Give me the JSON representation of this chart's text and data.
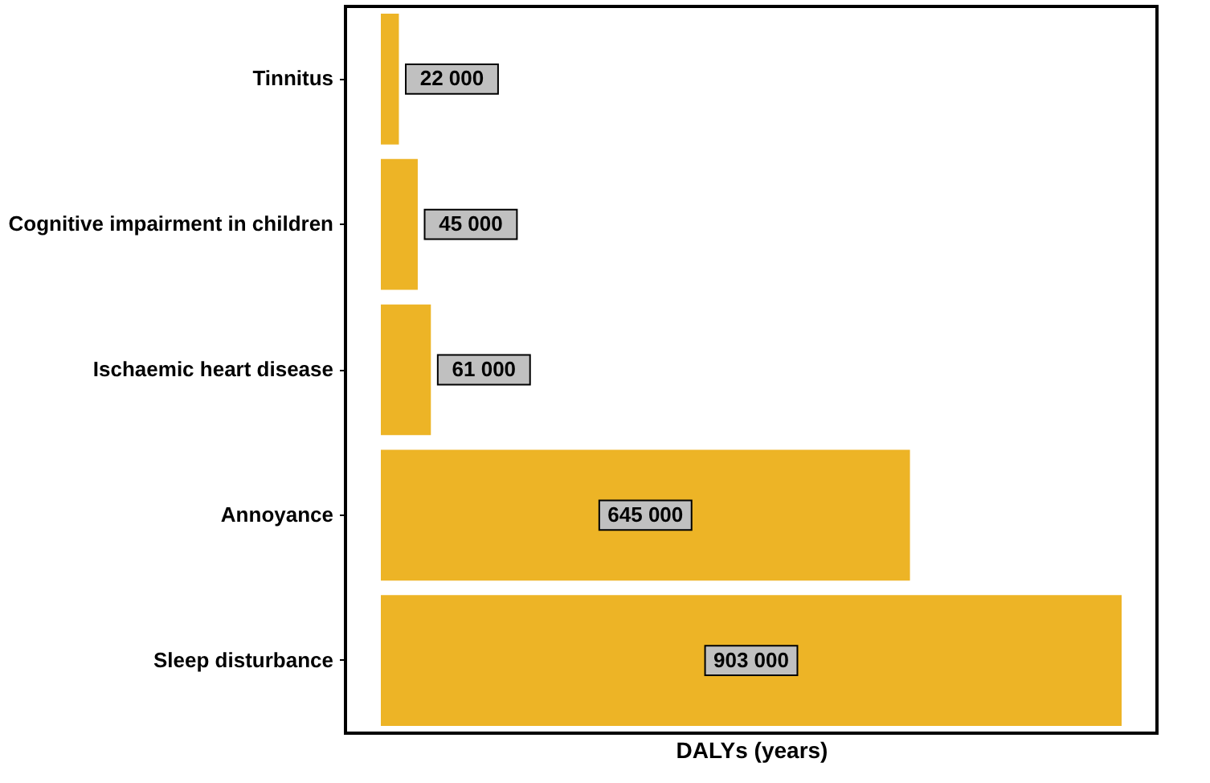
{
  "chart_data": {
    "type": "bar",
    "orientation": "horizontal",
    "xlabel": "DALYs (years)",
    "categories": [
      "Tinnitus",
      "Cognitive impairment in children",
      "Ischaemic heart disease",
      "Annoyance",
      "Sleep disturbance"
    ],
    "values": [
      22000,
      45000,
      61000,
      645000,
      903000
    ],
    "value_labels": [
      "22 000",
      "45 000",
      "61 000",
      "645 000",
      "903 000"
    ],
    "color": "#edb426",
    "grid": false,
    "tick_labels": "y"
  }
}
